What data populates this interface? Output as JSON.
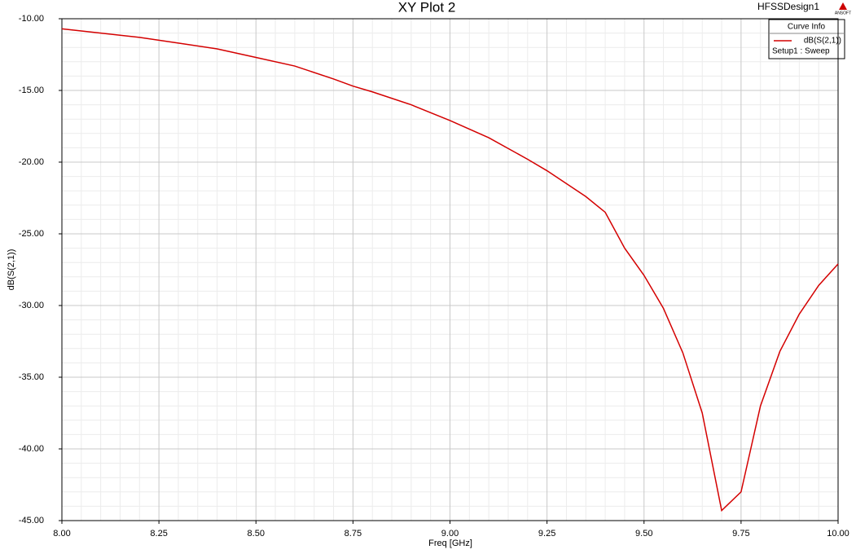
{
  "chart_data": {
    "type": "line",
    "title": "XY Plot 2",
    "design_name": "HFSSDesign1",
    "logo": "ANSOFT",
    "x_label": "Freq [GHz]",
    "y_label": "dB(S(2,1))",
    "legend_title": "Curve Info",
    "legend_position": "top-right",
    "grid": true,
    "x": [
      8.0,
      8.1,
      8.2,
      8.25,
      8.3,
      8.4,
      8.5,
      8.6,
      8.7,
      8.75,
      8.8,
      8.9,
      9.0,
      9.1,
      9.2,
      9.25,
      9.3,
      9.35,
      9.4,
      9.45,
      9.5,
      9.55,
      9.6,
      9.65,
      9.7,
      9.75,
      9.8,
      9.85,
      9.9,
      9.95,
      10.0
    ],
    "series": [
      {
        "name": "dB(S(2,1))",
        "solution": "Setup1 : Sweep",
        "color": "#d40000",
        "values": [
          -10.7,
          -11.0,
          -11.3,
          -11.5,
          -11.7,
          -12.1,
          -12.7,
          -13.3,
          -14.2,
          -14.7,
          -15.1,
          -16.0,
          -17.1,
          -18.3,
          -19.8,
          -20.6,
          -21.5,
          -22.4,
          -23.5,
          -26.0,
          -27.9,
          -30.2,
          -33.3,
          -37.5,
          -44.3,
          -43.0,
          -37.0,
          -33.2,
          -30.6,
          -28.6,
          -27.1
        ]
      }
    ],
    "xlim": [
      8.0,
      10.0
    ],
    "ylim": [
      -45,
      -10
    ],
    "xticks": [
      {
        "value": 8,
        "label": "8.00"
      },
      8.25,
      {
        "value": 8.5,
        "label": "8.50"
      },
      8.75,
      {
        "value": 9,
        "label": "9.00"
      },
      9.25,
      {
        "value": 9.5,
        "label": "9.50"
      },
      9.75,
      {
        "value": 10,
        "label": "10.00"
      }
    ],
    "yticks": [
      {
        "value": -10,
        "label": "-10.00"
      },
      {
        "value": -15,
        "label": "-15.00"
      },
      {
        "value": -20,
        "label": "-20.00"
      },
      {
        "value": -25,
        "label": "-25.00"
      },
      {
        "value": -30,
        "label": "-30.00"
      },
      {
        "value": -35,
        "label": "-35.00"
      },
      {
        "value": -40,
        "label": "-40.00"
      },
      {
        "value": -45,
        "label": "-45.00"
      }
    ]
  }
}
